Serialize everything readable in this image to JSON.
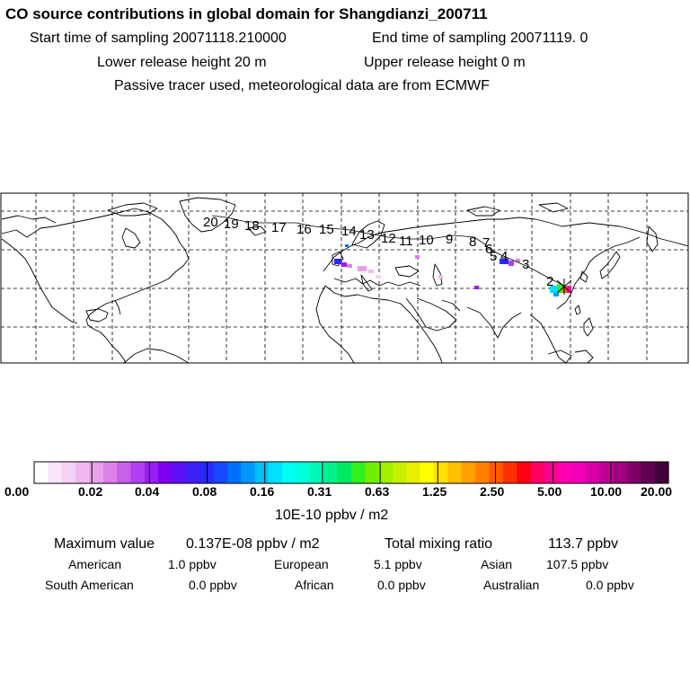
{
  "header": {
    "title": "CO  source contributions in global domain for Shangdianzi_200711",
    "start_label": "Start time of sampling 20071118.210000",
    "end_label": "End time of sampling 20071119.     0",
    "lower_label": "Lower release height   20 m",
    "upper_label": "Upper release height    0 m",
    "tracer_note": "Passive tracer used, meteorological data are from ECMWF"
  },
  "map": {
    "trajectory_labels": [
      "2",
      "3",
      "4",
      "5",
      "6",
      "7",
      "8",
      "9",
      "10",
      "11",
      "12",
      "13",
      "14",
      "15",
      "16",
      "17",
      "18",
      "19",
      "20"
    ],
    "colors": {
      "coast": "#000000",
      "grid": "#000000",
      "trajectory": "#000000"
    }
  },
  "colorbar": {
    "tick_labels": [
      "0.00",
      "0.02",
      "0.04",
      "0.08",
      "0.16",
      "0.31",
      "0.63",
      "1.25",
      "2.50",
      "5.00",
      "10.00",
      "20.00"
    ],
    "unit": "10E-10 ppbv / m2",
    "colors": [
      "#ffffff",
      "#fbe6fb",
      "#f6d0f6",
      "#f0b8f0",
      "#e9a0ec",
      "#dd80e8",
      "#c860e8",
      "#b040f0",
      "#9820f0",
      "#8000f0",
      "#6010f4",
      "#4020f8",
      "#2828ff",
      "#1848ff",
      "#0070ff",
      "#0098ff",
      "#00c0ff",
      "#00e0ff",
      "#00fff0",
      "#00ffd8",
      "#00f8b8",
      "#00f090",
      "#00e860",
      "#30f020",
      "#70f000",
      "#a0f000",
      "#c8f000",
      "#e8f000",
      "#ffff00",
      "#ffe000",
      "#ffc000",
      "#ffa000",
      "#ff8000",
      "#ff5a00",
      "#ff3000",
      "#ff0010",
      "#ff0060",
      "#ff0090",
      "#ff00b0",
      "#f000b8",
      "#d800a8",
      "#c00098",
      "#a00080",
      "#800068",
      "#600050",
      "#400038"
    ]
  },
  "summary": {
    "max_label": "Maximum value",
    "max_value": "0.137E-08 ppbv / m2",
    "total_label": "Total mixing ratio",
    "total_value": "113.7 ppbv",
    "regions": [
      {
        "name": "American",
        "value": "1.0 ppbv"
      },
      {
        "name": "European",
        "value": "5.1 ppbv"
      },
      {
        "name": "Asian",
        "value": "107.5 ppbv"
      },
      {
        "name": "South American",
        "value": "0.0 ppbv"
      },
      {
        "name": "African",
        "value": "0.0 ppbv"
      },
      {
        "name": "Australian",
        "value": "0.0 ppbv"
      }
    ]
  }
}
